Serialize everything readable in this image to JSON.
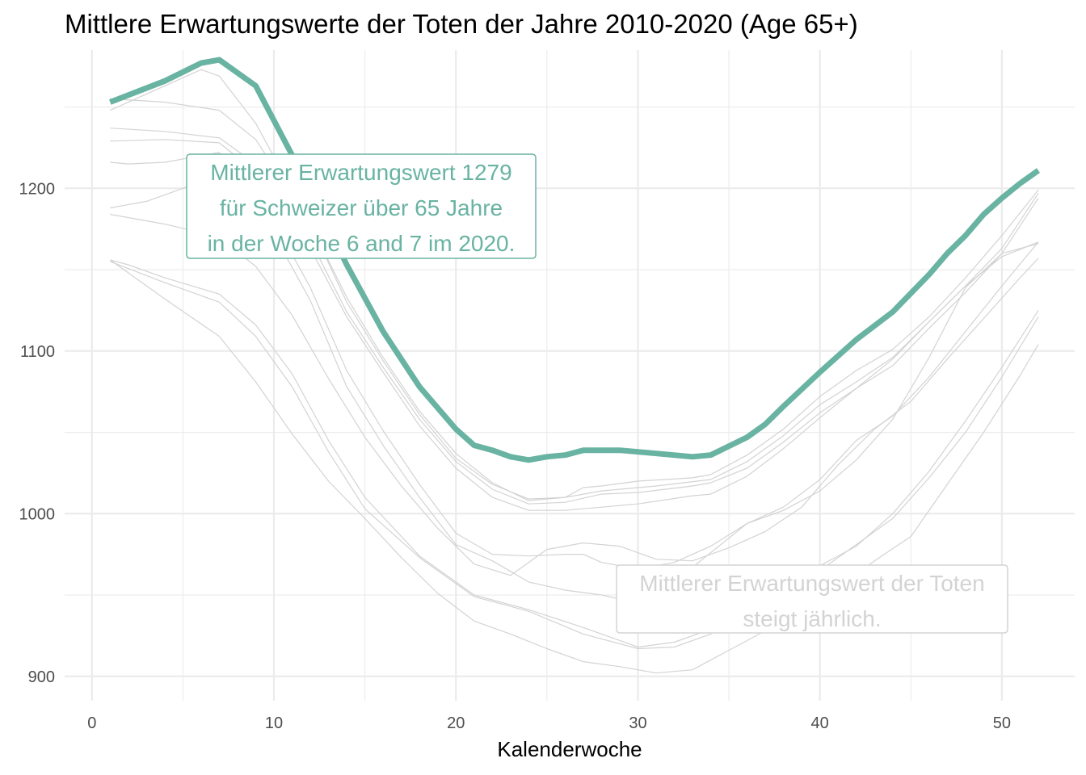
{
  "chart_data": {
    "type": "line",
    "title": "Mittlere Erwartungswerte der Toten der Jahre 2010-2020 (Age 65+)",
    "xlabel": "Kalenderwoche",
    "ylabel": "",
    "xlim": [
      -1.5,
      54
    ],
    "ylim": [
      885,
      1285
    ],
    "x_ticks": [
      0,
      10,
      20,
      30,
      40,
      50
    ],
    "y_ticks": [
      900,
      1000,
      1100,
      1200
    ],
    "grid": true,
    "colors": {
      "highlight": "#69b3a2",
      "background_series": "#d3d3d3",
      "grid": "#ebebeb"
    },
    "series": [
      {
        "highlight": true,
        "points": [
          [
            1,
            1253
          ],
          [
            4,
            1266
          ],
          [
            6,
            1277
          ],
          [
            7,
            1279
          ],
          [
            9,
            1263
          ],
          [
            12,
            1199
          ],
          [
            14,
            1153
          ],
          [
            16,
            1112
          ],
          [
            18,
            1078
          ],
          [
            20,
            1052
          ],
          [
            21,
            1042
          ],
          [
            22,
            1039
          ],
          [
            23,
            1035
          ],
          [
            24,
            1033
          ],
          [
            25,
            1035
          ],
          [
            26,
            1036
          ],
          [
            27,
            1039
          ],
          [
            29,
            1039
          ],
          [
            31,
            1037
          ],
          [
            33,
            1035
          ],
          [
            34,
            1036
          ],
          [
            36,
            1047
          ],
          [
            37,
            1055
          ],
          [
            38,
            1066
          ],
          [
            40,
            1087
          ],
          [
            42,
            1107
          ],
          [
            44,
            1124
          ],
          [
            46,
            1147
          ],
          [
            47,
            1160
          ],
          [
            48,
            1171
          ],
          [
            49,
            1184
          ],
          [
            50,
            1194
          ],
          [
            51,
            1203
          ],
          [
            52,
            1211
          ]
        ]
      },
      {
        "points": [
          [
            1,
            1248
          ],
          [
            3,
            1258
          ],
          [
            6,
            1273
          ],
          [
            7,
            1269
          ],
          [
            9,
            1240
          ],
          [
            12,
            1178
          ],
          [
            14,
            1133
          ],
          [
            16,
            1096
          ],
          [
            18,
            1063
          ],
          [
            20,
            1037
          ],
          [
            22,
            1019
          ],
          [
            24,
            1008
          ],
          [
            26,
            1010
          ],
          [
            27,
            1016
          ],
          [
            28,
            1017
          ],
          [
            30,
            1020
          ],
          [
            33,
            1022
          ],
          [
            34,
            1024
          ],
          [
            36,
            1036
          ],
          [
            38,
            1052
          ],
          [
            40,
            1072
          ],
          [
            42,
            1088
          ],
          [
            44,
            1101
          ],
          [
            46,
            1121
          ],
          [
            48,
            1145
          ],
          [
            50,
            1171
          ],
          [
            52,
            1199
          ]
        ]
      },
      {
        "points": [
          [
            1,
            1255
          ],
          [
            4,
            1253
          ],
          [
            7,
            1248
          ],
          [
            9,
            1230
          ],
          [
            12,
            1178
          ],
          [
            14,
            1130
          ],
          [
            16,
            1094
          ],
          [
            18,
            1061
          ],
          [
            20,
            1034
          ],
          [
            22,
            1018
          ],
          [
            24,
            1009
          ],
          [
            26,
            1010
          ],
          [
            28,
            1014
          ],
          [
            31,
            1017
          ],
          [
            34,
            1021
          ],
          [
            36,
            1032
          ],
          [
            38,
            1048
          ],
          [
            40,
            1067
          ],
          [
            42,
            1081
          ],
          [
            44,
            1096
          ],
          [
            46,
            1118
          ],
          [
            48,
            1140
          ],
          [
            50,
            1163
          ],
          [
            52,
            1197
          ]
        ]
      },
      {
        "points": [
          [
            1,
            1237
          ],
          [
            4,
            1235
          ],
          [
            7,
            1231
          ],
          [
            9,
            1215
          ],
          [
            12,
            1168
          ],
          [
            14,
            1124
          ],
          [
            16,
            1090
          ],
          [
            18,
            1058
          ],
          [
            20,
            1032
          ],
          [
            22,
            1015
          ],
          [
            24,
            1006
          ],
          [
            26,
            1007
          ],
          [
            28,
            1012
          ],
          [
            30,
            1013
          ],
          [
            33,
            1017
          ],
          [
            34,
            1019
          ],
          [
            36,
            1028
          ],
          [
            38,
            1044
          ],
          [
            40,
            1062
          ],
          [
            42,
            1077
          ],
          [
            44,
            1091
          ],
          [
            46,
            1114
          ],
          [
            48,
            1136
          ],
          [
            50,
            1160
          ],
          [
            52,
            1194
          ]
        ]
      },
      {
        "points": [
          [
            1,
            1229
          ],
          [
            4,
            1230
          ],
          [
            7,
            1228
          ],
          [
            9,
            1210
          ],
          [
            12,
            1163
          ],
          [
            14,
            1121
          ],
          [
            16,
            1087
          ],
          [
            18,
            1054
          ],
          [
            20,
            1028
          ],
          [
            22,
            1010
          ],
          [
            24,
            1002
          ],
          [
            26,
            1002
          ],
          [
            28,
            1004
          ],
          [
            30,
            1006
          ],
          [
            33,
            1011
          ],
          [
            34,
            1012
          ],
          [
            36,
            1023
          ],
          [
            38,
            1040
          ],
          [
            40,
            1059
          ],
          [
            42,
            1077
          ],
          [
            44,
            1095
          ],
          [
            46,
            1118
          ],
          [
            48,
            1140
          ],
          [
            50,
            1158
          ],
          [
            52,
            1167
          ]
        ]
      },
      {
        "points": [
          [
            1,
            1216
          ],
          [
            2,
            1215
          ],
          [
            4,
            1216
          ],
          [
            7,
            1222
          ],
          [
            9,
            1200
          ],
          [
            12,
            1139
          ],
          [
            14,
            1088
          ],
          [
            16,
            1051
          ],
          [
            18,
            1018
          ],
          [
            20,
            988
          ],
          [
            22,
            975
          ],
          [
            24,
            974
          ],
          [
            26,
            975
          ],
          [
            27,
            975
          ],
          [
            28,
            970
          ],
          [
            30,
            966
          ],
          [
            32,
            970
          ],
          [
            34,
            980
          ],
          [
            36,
            994
          ],
          [
            38,
            1004
          ],
          [
            40,
            1021
          ],
          [
            42,
            1045
          ],
          [
            44,
            1060
          ],
          [
            46,
            1084
          ],
          [
            48,
            1112
          ],
          [
            50,
            1140
          ],
          [
            52,
            1167
          ]
        ]
      },
      {
        "points": [
          [
            1,
            1188
          ],
          [
            3,
            1192
          ],
          [
            5,
            1200
          ],
          [
            7,
            1210
          ],
          [
            9,
            1192
          ],
          [
            12,
            1131
          ],
          [
            14,
            1078
          ],
          [
            16,
            1042
          ],
          [
            18,
            1010
          ],
          [
            20,
            981
          ],
          [
            22,
            971
          ],
          [
            24,
            958
          ],
          [
            26,
            953
          ],
          [
            28,
            950
          ],
          [
            30,
            945
          ],
          [
            32,
            958
          ],
          [
            34,
            976
          ],
          [
            36,
            994
          ],
          [
            38,
            1002
          ],
          [
            40,
            1014
          ],
          [
            42,
            1033
          ],
          [
            44,
            1058
          ],
          [
            46,
            1096
          ],
          [
            48,
            1139
          ],
          [
            50,
            1160
          ],
          [
            52,
            1166
          ]
        ]
      },
      {
        "points": [
          [
            1,
            1184
          ],
          [
            4,
            1178
          ],
          [
            7,
            1170
          ],
          [
            9,
            1152
          ],
          [
            11,
            1122
          ],
          [
            13,
            1083
          ],
          [
            15,
            1047
          ],
          [
            17,
            1017
          ],
          [
            19,
            991
          ],
          [
            21,
            969
          ],
          [
            23,
            962
          ],
          [
            25,
            978
          ],
          [
            27,
            982
          ],
          [
            29,
            980
          ],
          [
            31,
            972
          ],
          [
            33,
            971
          ],
          [
            35,
            979
          ],
          [
            37,
            989
          ],
          [
            39,
            1004
          ],
          [
            41,
            1030
          ],
          [
            43,
            1052
          ],
          [
            45,
            1069
          ],
          [
            47,
            1095
          ],
          [
            49,
            1120
          ],
          [
            51,
            1145
          ],
          [
            52,
            1157
          ]
        ]
      },
      {
        "points": [
          [
            1,
            1156
          ],
          [
            2,
            1153
          ],
          [
            4,
            1145
          ],
          [
            7,
            1135
          ],
          [
            9,
            1116
          ],
          [
            11,
            1086
          ],
          [
            13,
            1045
          ],
          [
            15,
            1010
          ],
          [
            18,
            974
          ],
          [
            21,
            950
          ],
          [
            24,
            941
          ],
          [
            27,
            930
          ],
          [
            30,
            918
          ],
          [
            32,
            921
          ],
          [
            34,
            929
          ],
          [
            36,
            941
          ],
          [
            38,
            955
          ],
          [
            40,
            968
          ],
          [
            42,
            980
          ],
          [
            44,
            1000
          ],
          [
            46,
            1026
          ],
          [
            48,
            1057
          ],
          [
            50,
            1090
          ],
          [
            52,
            1125
          ]
        ]
      },
      {
        "points": [
          [
            1,
            1155
          ],
          [
            4,
            1142
          ],
          [
            7,
            1130
          ],
          [
            9,
            1109
          ],
          [
            11,
            1078
          ],
          [
            13,
            1038
          ],
          [
            15,
            1003
          ],
          [
            18,
            973
          ],
          [
            21,
            949
          ],
          [
            24,
            940
          ],
          [
            27,
            926
          ],
          [
            30,
            917
          ],
          [
            32,
            918
          ],
          [
            34,
            926
          ],
          [
            36,
            938
          ],
          [
            38,
            952
          ],
          [
            40,
            965
          ],
          [
            42,
            981
          ],
          [
            44,
            997
          ],
          [
            46,
            1022
          ],
          [
            48,
            1050
          ],
          [
            50,
            1084
          ],
          [
            52,
            1121
          ]
        ]
      },
      {
        "points": [
          [
            1,
            1156
          ],
          [
            4,
            1132
          ],
          [
            7,
            1109
          ],
          [
            9,
            1081
          ],
          [
            11,
            1049
          ],
          [
            13,
            1020
          ],
          [
            15,
            997
          ],
          [
            17,
            973
          ],
          [
            19,
            951
          ],
          [
            21,
            934
          ],
          [
            23,
            926
          ],
          [
            25,
            917
          ],
          [
            27,
            909
          ],
          [
            29,
            906
          ],
          [
            31,
            902
          ],
          [
            33,
            904
          ],
          [
            35,
            916
          ],
          [
            37,
            928
          ],
          [
            39,
            939
          ],
          [
            41,
            955
          ],
          [
            43,
            971
          ],
          [
            45,
            986
          ],
          [
            47,
            1018
          ],
          [
            49,
            1050
          ],
          [
            51,
            1085
          ],
          [
            52,
            1104
          ]
        ]
      }
    ],
    "annotations": [
      {
        "lines": [
          "Mittlerer Erwartungswert 1279",
          "für Schweizer über 65 Jahre",
          "in der Woche 6 and 7 im 2020."
        ],
        "color": "#69b3a2"
      },
      {
        "lines": [
          "Mittlerer Erwartungswert der Toten",
          "steigt jährlich."
        ],
        "color": "#d3d3d3"
      }
    ]
  }
}
